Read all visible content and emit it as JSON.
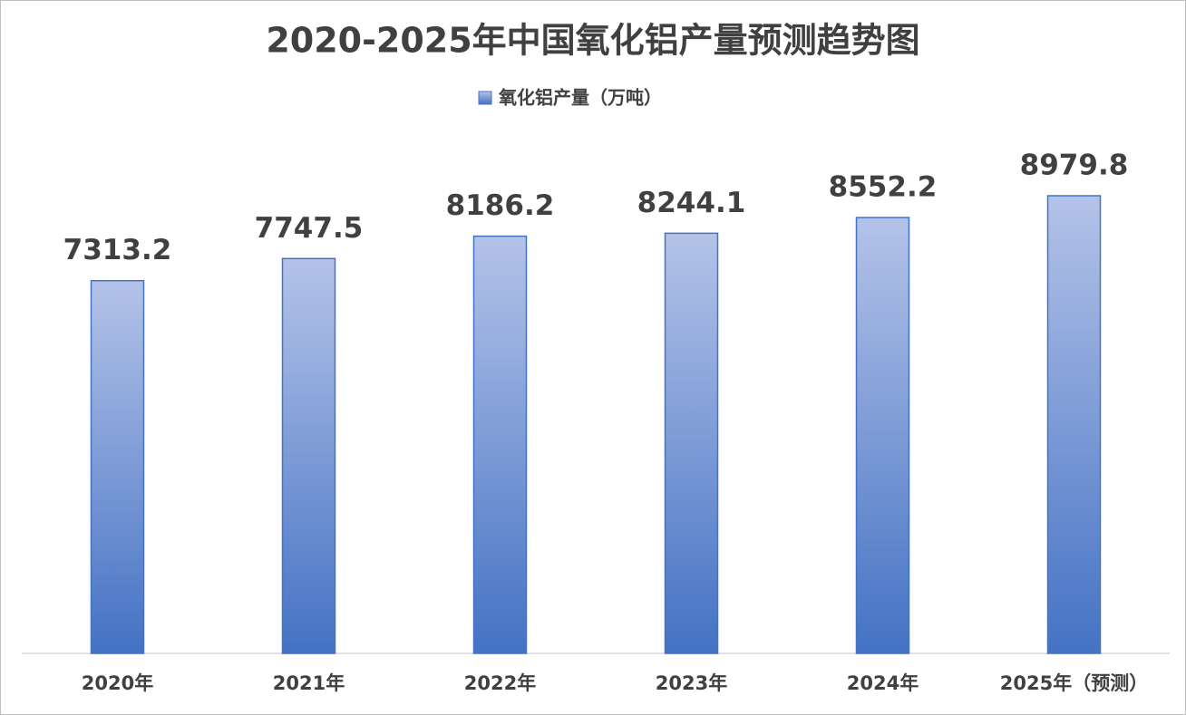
{
  "chart_data": {
    "type": "bar",
    "title": "2020-2025年中国氧化铝产量预测趋势图",
    "categories": [
      "2020年",
      "2021年",
      "2022年",
      "2023年",
      "2024年",
      "2025年（预测）"
    ],
    "series": [
      {
        "name": "氧化铝产量（万吨）",
        "color": "#4472c4",
        "values": [
          7313.2,
          7747.5,
          8186.2,
          8244.1,
          8552.2,
          8979.8
        ]
      }
    ],
    "legend": "top"
  }
}
